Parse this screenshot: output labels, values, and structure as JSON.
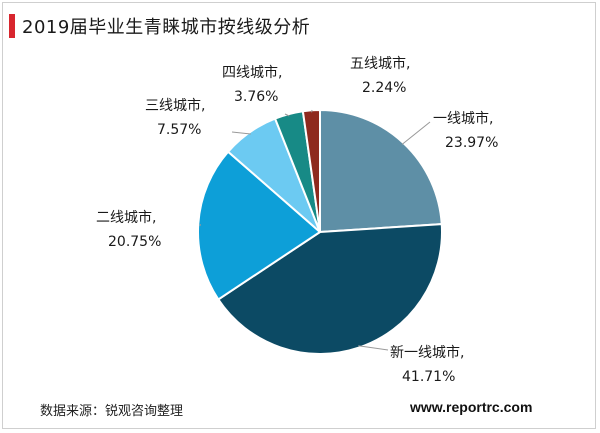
{
  "title": "2019届毕业生青睐城市按线级分析",
  "source": "数据来源：锐观咨询整理",
  "website": "www.reportrc.com",
  "colors": {
    "accent": "#d8262e",
    "tier1": "#5e8fa6",
    "new_tier1": "#0c4a64",
    "tier2": "#0d9fd8",
    "tier3": "#6ccaf2",
    "tier4": "#178a86",
    "tier5": "#8e2a1e"
  },
  "chart_data": {
    "type": "pie",
    "title": "2019届毕业生青睐城市按线级分析",
    "start_angle_deg": 90,
    "direction": "clockwise",
    "slices": [
      {
        "label": "一线城市,",
        "value": 23.97,
        "value_text": "23.97%",
        "color": "#5e8fa6"
      },
      {
        "label": "新一线城市,",
        "value": 41.71,
        "value_text": "41.71%",
        "color": "#0c4a64"
      },
      {
        "label": "二线城市,",
        "value": 20.75,
        "value_text": "20.75%",
        "color": "#0d9fd8"
      },
      {
        "label": "三线城市,",
        "value": 7.57,
        "value_text": "7.57%",
        "color": "#6ccaf2"
      },
      {
        "label": "四线城市,",
        "value": 3.76,
        "value_text": "3.76%",
        "color": "#178a86"
      },
      {
        "label": "五线城市,",
        "value": 2.24,
        "value_text": "2.24%",
        "color": "#8e2a1e"
      }
    ]
  }
}
